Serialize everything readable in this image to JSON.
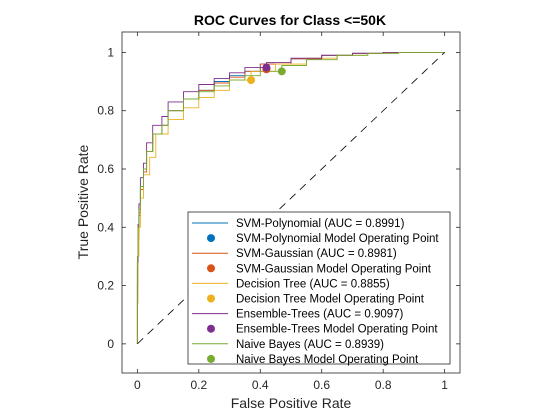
{
  "chart_data": {
    "type": "line",
    "title": "ROC Curves for Class <=50K",
    "xlabel": "False Positive Rate",
    "ylabel": "True Positive Rate",
    "xlim": [
      -0.05,
      1.05
    ],
    "ylim": [
      -0.1,
      1.07
    ],
    "xticks": [
      "0",
      "0.2",
      "0.4",
      "0.6",
      "0.8",
      "1"
    ],
    "yticks": [
      "0",
      "0.2",
      "0.4",
      "0.6",
      "0.8",
      "1"
    ],
    "xtick_values": [
      0,
      0.2,
      0.4,
      0.6,
      0.8,
      1
    ],
    "ytick_values": [
      0,
      0.2,
      0.4,
      0.6,
      0.8,
      1
    ],
    "grid": false,
    "legend_position": "bottom-right",
    "series": [
      {
        "name": "SVM-Polynomial (AUC = 0.8991)",
        "color": "#0072BD",
        "x": [
          0,
          0.002,
          0.005,
          0.01,
          0.02,
          0.03,
          0.05,
          0.08,
          0.1,
          0.15,
          0.2,
          0.25,
          0.3,
          0.35,
          0.4,
          0.5,
          0.6,
          0.7,
          0.8,
          0.9,
          1
        ],
        "y": [
          0,
          0.26,
          0.38,
          0.45,
          0.54,
          0.6,
          0.66,
          0.72,
          0.75,
          0.8,
          0.84,
          0.87,
          0.9,
          0.92,
          0.935,
          0.96,
          0.978,
          0.99,
          0.997,
          1,
          1
        ],
        "operating_point_name": "SVM-Polynomial Model Operating Point",
        "operating_point": [
          0.42,
          0.945
        ]
      },
      {
        "name": "SVM-Gaussian (AUC = 0.8981)",
        "color": "#D95319",
        "x": [
          0,
          0.002,
          0.005,
          0.01,
          0.02,
          0.03,
          0.05,
          0.08,
          0.1,
          0.15,
          0.2,
          0.25,
          0.3,
          0.35,
          0.4,
          0.5,
          0.6,
          0.7,
          0.8,
          0.9,
          1
        ],
        "y": [
          0,
          0.2,
          0.36,
          0.44,
          0.53,
          0.59,
          0.66,
          0.72,
          0.75,
          0.8,
          0.84,
          0.87,
          0.895,
          0.915,
          0.935,
          0.96,
          0.978,
          0.99,
          0.997,
          1,
          1
        ],
        "operating_point_name": "SVM-Gaussian Model Operating Point",
        "operating_point": [
          0.42,
          0.942
        ]
      },
      {
        "name": "Decision Tree (AUC = 0.8855)",
        "color": "#EDB120",
        "x": [
          0,
          0.002,
          0.005,
          0.01,
          0.02,
          0.04,
          0.06,
          0.1,
          0.15,
          0.2,
          0.25,
          0.3,
          0.37,
          0.45,
          0.55,
          0.65,
          0.75,
          0.85,
          1
        ],
        "y": [
          0,
          0.14,
          0.3,
          0.4,
          0.5,
          0.58,
          0.64,
          0.72,
          0.77,
          0.81,
          0.845,
          0.87,
          0.905,
          0.935,
          0.96,
          0.98,
          0.99,
          0.997,
          1
        ],
        "operating_point_name": "Decision Tree Model Operating Point",
        "operating_point": [
          0.37,
          0.905
        ]
      },
      {
        "name": "Ensemble-Trees (AUC = 0.9097)",
        "color": "#7E2F8E",
        "x": [
          0,
          0.002,
          0.005,
          0.01,
          0.02,
          0.03,
          0.05,
          0.08,
          0.1,
          0.15,
          0.2,
          0.25,
          0.3,
          0.35,
          0.42,
          0.5,
          0.6,
          0.7,
          0.8,
          0.9,
          1
        ],
        "y": [
          0,
          0.28,
          0.41,
          0.48,
          0.57,
          0.62,
          0.69,
          0.75,
          0.78,
          0.83,
          0.865,
          0.89,
          0.91,
          0.93,
          0.948,
          0.965,
          0.98,
          0.99,
          0.997,
          1,
          1
        ],
        "operating_point_name": "Ensemble-Trees Model Operating Point",
        "operating_point": [
          0.42,
          0.948
        ]
      },
      {
        "name": "Naive Bayes (AUC = 0.8939)",
        "color": "#77AC30",
        "x": [
          0,
          0.002,
          0.005,
          0.01,
          0.02,
          0.03,
          0.05,
          0.08,
          0.1,
          0.15,
          0.2,
          0.25,
          0.3,
          0.35,
          0.4,
          0.47,
          0.55,
          0.65,
          0.75,
          0.85,
          1
        ],
        "y": [
          0,
          0.3,
          0.4,
          0.46,
          0.54,
          0.6,
          0.66,
          0.72,
          0.75,
          0.8,
          0.84,
          0.865,
          0.885,
          0.905,
          0.92,
          0.935,
          0.955,
          0.975,
          0.99,
          0.997,
          1
        ],
        "operating_point_name": "Naive Bayes Model Operating Point",
        "operating_point": [
          0.47,
          0.935
        ]
      }
    ]
  }
}
